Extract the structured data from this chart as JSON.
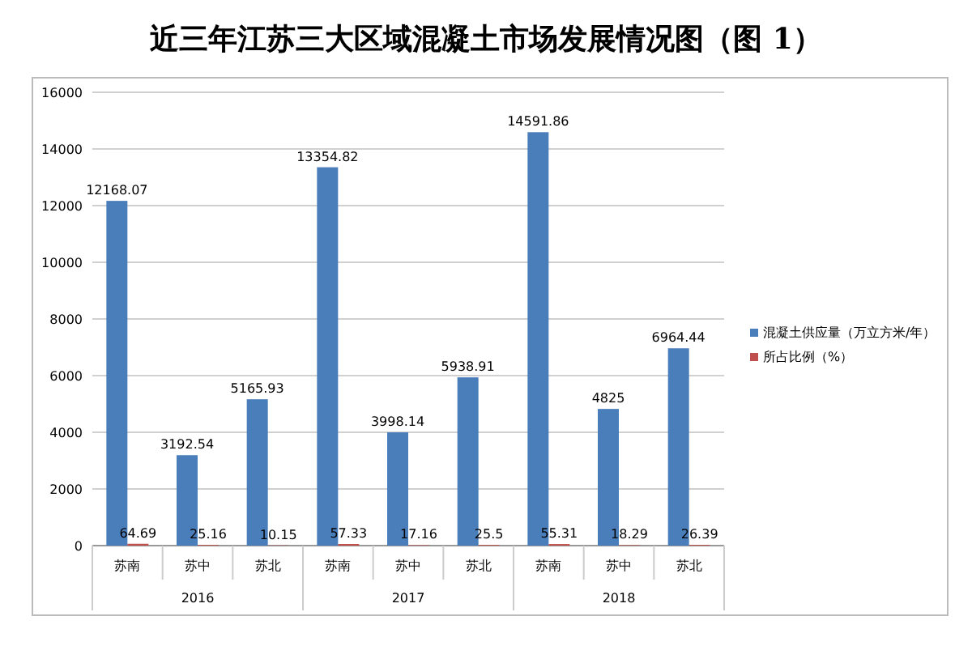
{
  "chart_data": {
    "type": "bar",
    "title": "近三年江苏三大区域混凝土市场发展情况图（图 1）",
    "categories": [
      "苏南",
      "苏中",
      "苏北",
      "苏南",
      "苏中",
      "苏北",
      "苏南",
      "苏中",
      "苏北"
    ],
    "series": [
      {
        "name": "混凝土供应量（万立方米/年）",
        "color": "#4a7ebb",
        "values": [
          12168.07,
          3192.54,
          5165.93,
          13354.82,
          3998.14,
          5938.91,
          14591.86,
          4825,
          6964.44
        ]
      },
      {
        "name": "所占比例（%）",
        "color": "#c0504d",
        "values": [
          64.69,
          25.16,
          10.15,
          57.33,
          17.16,
          25.5,
          55.31,
          18.29,
          26.39
        ]
      }
    ],
    "annotations": [
      "2016",
      "2017",
      "2018"
    ],
    "ylim": [
      0,
      16000
    ],
    "yticks": [
      0,
      2000,
      4000,
      6000,
      8000,
      10000,
      12000,
      14000,
      16000
    ],
    "grid": "y",
    "legend": "right",
    "data_labels": true
  }
}
